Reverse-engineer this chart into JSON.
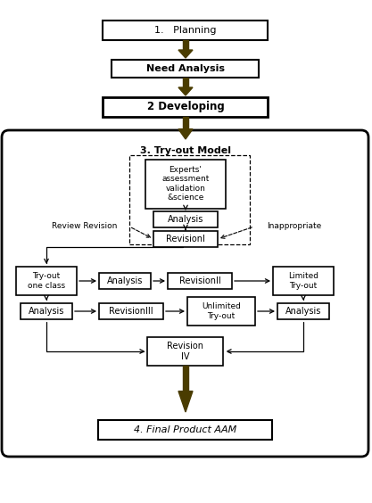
{
  "fig_w": 4.17,
  "fig_h": 5.64,
  "dpi": 100,
  "arrow_color": "#4a3c00",
  "bg_color": "#ffffff",
  "box_ec": "#000000",
  "box_fc": "#ffffff",
  "tryout_label": "3. Try-out Model",
  "planning_label": "1.   Planning",
  "need_label": "Need Analysis",
  "developing_label": "2 Developing",
  "experts_label": "Experts'\nassessment\nvalidation\n&science",
  "analysis1_label": "Analysis",
  "revision1_label": "RevisionI",
  "tryout1_label": "Try-out\none class",
  "analysis2_label": "Analysis",
  "revision2_label": "RevisionII",
  "limited_label": "Limited\nTry-out",
  "analysis3_label": "Analysis",
  "revision3_label": "RevisionIII",
  "unlimited_label": "Unlimited\nTry-out",
  "analysis4_label": "Analysis",
  "revision4_label": "Revision\nIV",
  "final_label": "4. Final Product AAM",
  "review_label": "Review Revision",
  "inappropriate_label": "Inappropriate"
}
